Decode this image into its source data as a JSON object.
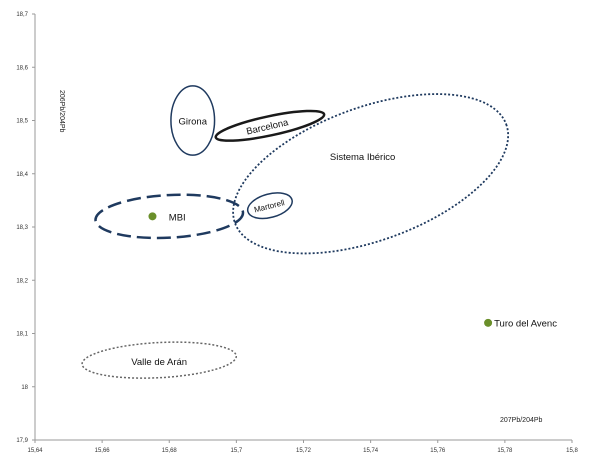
{
  "chart_data": {
    "type": "scatter",
    "title": "",
    "xlabel": "207Pb/204Pb",
    "ylabel": "206Pb/204Pb",
    "xlim": [
      15.64,
      15.8
    ],
    "ylim": [
      17.9,
      18.7
    ],
    "x_ticks": [
      "15,64",
      "15,66",
      "15,68",
      "15,7",
      "15,72",
      "15,74",
      "15,76",
      "15,78",
      "15,8"
    ],
    "y_ticks": [
      "17,9",
      "18",
      "18,1",
      "18,2",
      "18,3",
      "18,4",
      "18,5",
      "18,6",
      "18,7"
    ],
    "grid": false,
    "points": [
      {
        "name": "MBI",
        "x": 15.675,
        "y": 18.32,
        "color": "#6a8f2a"
      },
      {
        "name": "Turo del Avenc",
        "x": 15.775,
        "y": 18.12,
        "color": "#6a8f2a"
      }
    ],
    "regions": [
      {
        "label": "Girona",
        "cx": 15.687,
        "cy": 18.5,
        "rx": 0.0065,
        "ry": 0.065,
        "angle": 0,
        "style": "solid",
        "color": "#1f3a5f",
        "width": 1.5
      },
      {
        "label": "Barcelona",
        "cx": 15.71,
        "cy": 18.49,
        "rx": 0.0165,
        "ry": 0.018,
        "angle": -12,
        "style": "solid",
        "color": "#1a1a1a",
        "width": 2.5
      },
      {
        "label": "Sistema Ibérico",
        "cx": 15.74,
        "cy": 18.4,
        "rx": 0.043,
        "ry": 0.125,
        "angle": -20,
        "style": "dotted",
        "color": "#1f3a5f",
        "width": 1.8
      },
      {
        "label": "MBI",
        "cx": 15.68,
        "cy": 18.32,
        "rx": 0.022,
        "ry": 0.04,
        "angle": -3,
        "style": "dashed",
        "color": "#1f3a5f",
        "width": 2.5
      },
      {
        "label": "Martorell",
        "cx": 15.71,
        "cy": 18.34,
        "rx": 0.0068,
        "ry": 0.022,
        "angle": -15,
        "style": "solid",
        "color": "#1f3a5f",
        "width": 1.5
      },
      {
        "label": "Valle de Arán",
        "cx": 15.677,
        "cy": 18.05,
        "rx": 0.023,
        "ry": 0.033,
        "angle": -3,
        "style": "dotted",
        "color": "#666666",
        "width": 1.5
      }
    ]
  }
}
